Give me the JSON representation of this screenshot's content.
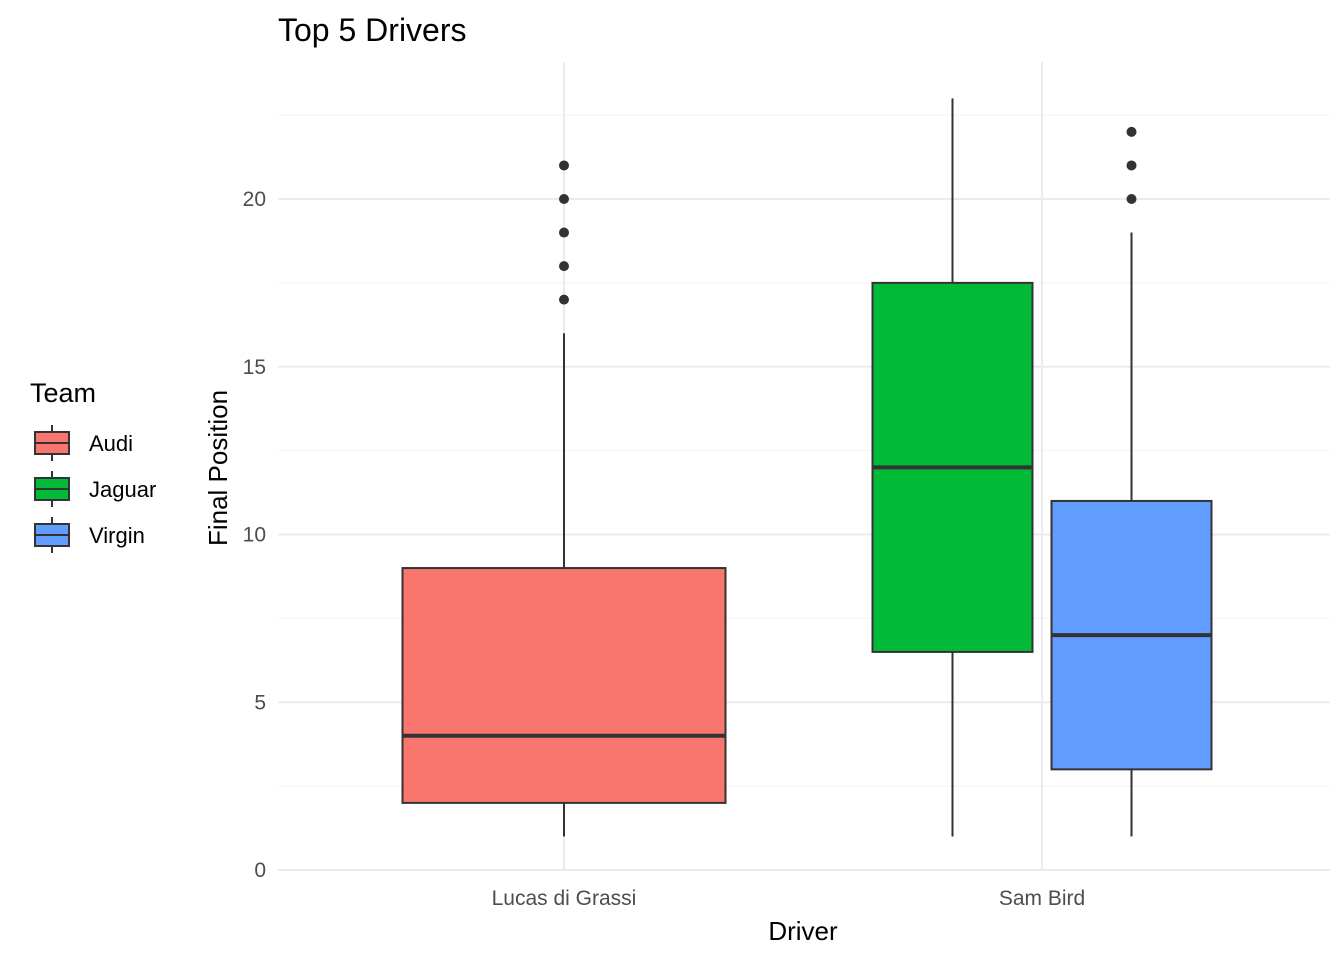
{
  "chart_data": {
    "type": "boxplot",
    "title": "Top 5 Drivers",
    "xlabel": "Driver",
    "ylabel": "Final Position",
    "categories": [
      "Lucas di Grassi",
      "Sam Bird"
    ],
    "ylim": [
      0,
      23.5
    ],
    "yticks": [
      0,
      5,
      10,
      15,
      20
    ],
    "grid": true,
    "legend": {
      "title": "Team",
      "position": "left",
      "entries": [
        {
          "name": "Audi",
          "color": "#F8766D"
        },
        {
          "name": "Jaguar",
          "color": "#00BA38"
        },
        {
          "name": "Virgin",
          "color": "#619CFF"
        }
      ]
    },
    "series": [
      {
        "category": "Lucas di Grassi",
        "team": "Audi",
        "color": "#F8766D",
        "whisker_low": 1,
        "q1": 2,
        "median": 4,
        "q3": 9,
        "whisker_high": 16,
        "outliers": [
          17,
          18,
          19,
          20,
          21
        ]
      },
      {
        "category": "Sam Bird",
        "team": "Jaguar",
        "color": "#00BA38",
        "whisker_low": 1,
        "q1": 6.5,
        "median": 12,
        "q3": 17.5,
        "whisker_high": 23,
        "outliers": []
      },
      {
        "category": "Sam Bird",
        "team": "Virgin",
        "color": "#619CFF",
        "whisker_low": 1,
        "q1": 3,
        "median": 7,
        "q3": 11,
        "whisker_high": 19,
        "outliers": [
          20,
          21,
          22
        ]
      }
    ]
  }
}
